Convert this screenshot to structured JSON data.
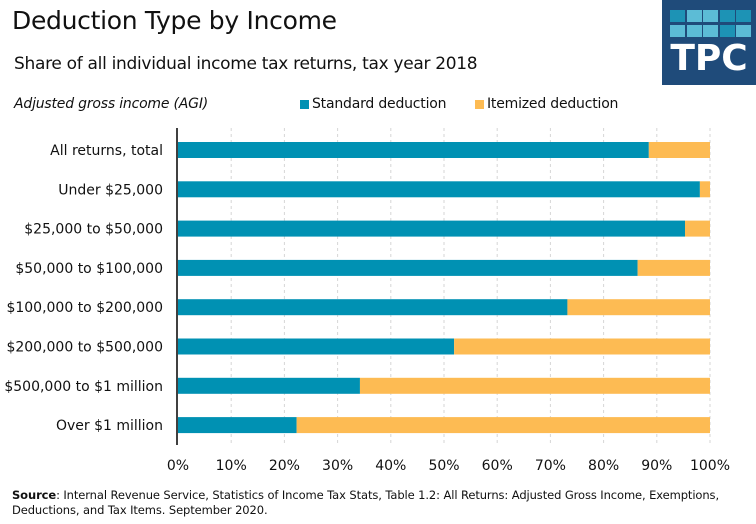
{
  "header": {
    "title": "Deduction Type by Income",
    "subtitle": "Share of all individual income tax returns, tax year 2018",
    "logo_text": "TPC"
  },
  "logo": {
    "icon": "tpc-logo-icon",
    "background": "#1f4b7a",
    "cell_colors": [
      [
        "#1d93b5",
        "#5cbcd6",
        "#5cbcd6",
        "#1d93b5",
        "#1d93b5"
      ],
      [
        "#5cbcd6",
        "#5cbcd6",
        "#5cbcd6",
        "#1d93b5",
        "#5cbcd6"
      ]
    ]
  },
  "colors": {
    "standard": "#0091b3",
    "itemized": "#fdbb53",
    "grid": "#d6d6d6",
    "axis": "#000000"
  },
  "footer": {
    "source_label": "Source",
    "source_text": ": Internal Revenue Service, Statistics of Income Tax Stats, Table 1.2: All Returns: Adjusted Gross Income, Exemptions, Deductions, and Tax Items. September 2020."
  },
  "chart_data": {
    "type": "bar",
    "orientation": "horizontal",
    "stacked": true,
    "title": "Deduction Type by Income",
    "subtitle": "Share of all individual income tax returns, tax year 2018",
    "ylabel": "Adjusted gross income (AGI)",
    "xlabel": "",
    "xlim": [
      0,
      100
    ],
    "x_ticks": [
      0,
      10,
      20,
      30,
      40,
      50,
      60,
      70,
      80,
      90,
      100
    ],
    "x_tick_labels": [
      "0%",
      "10%",
      "20%",
      "30%",
      "40%",
      "50%",
      "60%",
      "70%",
      "80%",
      "90%",
      "100%"
    ],
    "grid": "vertical-dashed",
    "legend": "top",
    "categories": [
      "All returns, total",
      "Under $25,000",
      "$25,000 to $50,000",
      "$50,000 to $100,000",
      "$100,000 to $200,000",
      "$200,000 to $500,000",
      "$500,000 to $1 million",
      "Over $1 million"
    ],
    "series": [
      {
        "name": "Standard deduction",
        "color": "#0091b3",
        "values": [
          88.5,
          98.1,
          95.3,
          86.4,
          73.2,
          51.9,
          34.2,
          22.3
        ]
      },
      {
        "name": "Itemized deduction",
        "color": "#fdbb53",
        "values": [
          11.5,
          1.9,
          4.7,
          13.6,
          26.8,
          48.1,
          65.8,
          77.7
        ]
      }
    ]
  }
}
